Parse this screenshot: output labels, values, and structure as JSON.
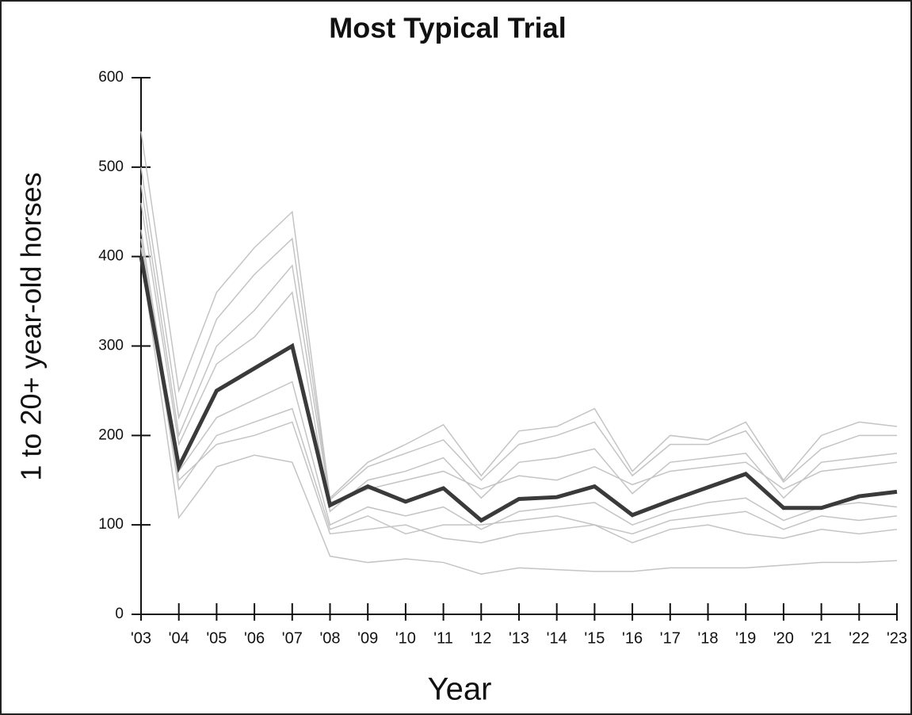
{
  "chart_data": {
    "type": "line",
    "title": "Most Typical Trial",
    "x_label": "Year",
    "y_label": "1 to 20+ year-old horses",
    "categories": [
      "'03",
      "'04",
      "'05",
      "'06",
      "'07",
      "'08",
      "'09",
      "'10",
      "'11",
      "'12",
      "'13",
      "'14",
      "'15",
      "'16",
      "'17",
      "'18",
      "'19",
      "'20",
      "'21",
      "'22",
      "'23"
    ],
    "ylim": [
      0,
      600
    ],
    "yticks": [
      0,
      100,
      200,
      300,
      400,
      500,
      600
    ],
    "grid": false,
    "series": [
      {
        "color": "#c4c4c4",
        "values": [
          540,
          250,
          360,
          410,
          450,
          130,
          170,
          190,
          212,
          155,
          205,
          210,
          230,
          160,
          200,
          195,
          215,
          150,
          200,
          215,
          210
        ]
      },
      {
        "color": "#c4c4c4",
        "values": [
          400,
          108,
          165,
          178,
          170,
          65,
          58,
          62,
          58,
          45,
          52,
          50,
          48,
          48,
          52,
          52,
          52,
          55,
          58,
          58,
          60
        ]
      },
      {
        "color": "#c4c4c4",
        "values": [
          500,
          220,
          330,
          380,
          420,
          128,
          165,
          180,
          195,
          150,
          190,
          200,
          215,
          155,
          190,
          190,
          205,
          148,
          185,
          200,
          200
        ]
      },
      {
        "color": "#c4c4c4",
        "values": [
          420,
          150,
          190,
          200,
          215,
          90,
          95,
          100,
          85,
          80,
          90,
          95,
          100,
          80,
          95,
          100,
          90,
          85,
          95,
          90,
          95
        ]
      },
      {
        "color": "#c4c4c4",
        "values": [
          460,
          190,
          280,
          310,
          360,
          115,
          150,
          160,
          175,
          130,
          170,
          175,
          185,
          135,
          170,
          175,
          180,
          130,
          170,
          175,
          180
        ]
      },
      {
        "color": "#c4c4c4",
        "values": [
          430,
          160,
          220,
          240,
          260,
          100,
          120,
          110,
          120,
          95,
          115,
          120,
          125,
          100,
          115,
          125,
          130,
          105,
          120,
          125,
          120
        ]
      },
      {
        "color": "#c4c4c4",
        "values": [
          480,
          200,
          300,
          340,
          390,
          125,
          140,
          150,
          160,
          140,
          155,
          150,
          165,
          145,
          160,
          165,
          170,
          140,
          160,
          165,
          170
        ]
      },
      {
        "color": "#c4c4c4",
        "values": [
          410,
          140,
          200,
          215,
          230,
          95,
          110,
          90,
          100,
          100,
          105,
          110,
          100,
          90,
          105,
          110,
          115,
          95,
          110,
          105,
          110
        ]
      },
      {
        "color": "#3a3a3a",
        "values": [
          400,
          165,
          250,
          275,
          300,
          122,
          143,
          126,
          141,
          105,
          129,
          131,
          143,
          111,
          127,
          142,
          157,
          119,
          119,
          132,
          137
        ]
      }
    ]
  }
}
